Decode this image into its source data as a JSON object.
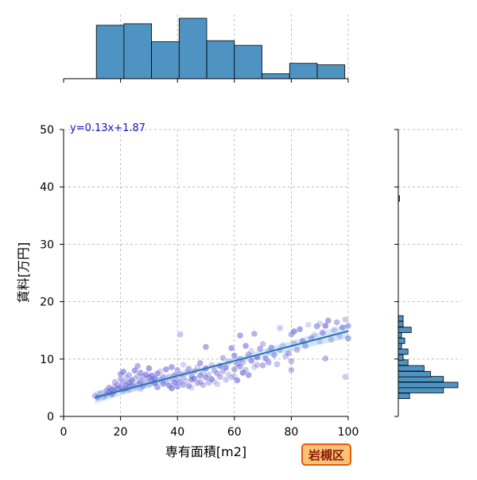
{
  "chart_data": {
    "type": "scatter",
    "xlabel": "専有面積[m2]",
    "ylabel": "賃料[万円]",
    "xlim": [
      0,
      100
    ],
    "ylim": [
      0,
      50
    ],
    "x_ticks": [
      0,
      20,
      40,
      60,
      80,
      100
    ],
    "y_ticks": [
      0,
      10,
      20,
      30,
      40,
      50
    ],
    "grid": true,
    "regression": {
      "label": "y=0.13x+1.87",
      "slope": 0.13,
      "intercept": 1.87,
      "x_range": [
        11,
        100
      ]
    },
    "badge": "岩槻区",
    "top_histogram": {
      "bin_width": 9.7,
      "bins": [
        {
          "x0": 11.5,
          "count": 20.5
        },
        {
          "x0": 21.2,
          "count": 21.1
        },
        {
          "x0": 30.9,
          "count": 14.2
        },
        {
          "x0": 40.6,
          "count": 23.2
        },
        {
          "x0": 50.3,
          "count": 14.6
        },
        {
          "x0": 60.0,
          "count": 12.8
        },
        {
          "x0": 69.7,
          "count": 1.9
        },
        {
          "x0": 79.4,
          "count": 5.9
        },
        {
          "x0": 89.1,
          "count": 5.3
        }
      ]
    },
    "right_histogram": {
      "bin_height": 0.96,
      "bins": [
        {
          "y0": 3.1,
          "count": 14
        },
        {
          "y0": 4.1,
          "count": 56
        },
        {
          "y0": 5.0,
          "count": 74
        },
        {
          "y0": 6.0,
          "count": 56
        },
        {
          "y0": 6.9,
          "count": 40
        },
        {
          "y0": 7.9,
          "count": 32
        },
        {
          "y0": 8.9,
          "count": 12
        },
        {
          "y0": 9.8,
          "count": 6
        },
        {
          "y0": 10.8,
          "count": 12
        },
        {
          "y0": 11.8,
          "count": 4
        },
        {
          "y0": 12.7,
          "count": 8
        },
        {
          "y0": 13.7,
          "count": 4
        },
        {
          "y0": 14.6,
          "count": 16
        },
        {
          "y0": 15.6,
          "count": 6
        },
        {
          "y0": 16.6,
          "count": 6
        },
        {
          "y0": 37.5,
          "count": 1
        }
      ]
    },
    "points": [
      [
        11,
        3.6
      ],
      [
        12,
        3.3
      ],
      [
        13,
        4.0
      ],
      [
        14,
        3.4
      ],
      [
        15,
        4.5
      ],
      [
        15,
        3.8
      ],
      [
        16,
        4.2
      ],
      [
        16,
        5.0
      ],
      [
        17,
        4.6
      ],
      [
        17,
        3.9
      ],
      [
        18,
        5.2
      ],
      [
        18,
        4.4
      ],
      [
        18,
        6.0
      ],
      [
        19,
        5.5
      ],
      [
        19,
        4.8
      ],
      [
        20,
        6.5
      ],
      [
        20,
        5.1
      ],
      [
        20,
        7.4
      ],
      [
        21,
        4.6
      ],
      [
        21,
        6.0
      ],
      [
        21,
        7.8
      ],
      [
        22,
        5.5
      ],
      [
        22,
        4.9
      ],
      [
        22,
        6.8
      ],
      [
        23,
        5.9
      ],
      [
        23,
        7.2
      ],
      [
        23,
        4.7
      ],
      [
        24,
        6.3
      ],
      [
        24,
        5.4
      ],
      [
        25,
        8.0
      ],
      [
        25,
        6.6
      ],
      [
        25,
        5.0
      ],
      [
        26,
        7.0
      ],
      [
        26,
        8.8
      ],
      [
        26,
        5.6
      ],
      [
        27,
        6.1
      ],
      [
        27,
        7.6
      ],
      [
        27,
        4.8
      ],
      [
        28,
        6.9
      ],
      [
        28,
        5.3
      ],
      [
        29,
        7.3
      ],
      [
        29,
        6.0
      ],
      [
        30,
        6.8
      ],
      [
        30,
        5.5
      ],
      [
        30,
        8.4
      ],
      [
        31,
        6.2
      ],
      [
        31,
        7.1
      ],
      [
        32,
        5.8
      ],
      [
        32,
        6.6
      ],
      [
        33,
        7.5
      ],
      [
        33,
        5.1
      ],
      [
        34,
        6.4
      ],
      [
        34,
        7.9
      ],
      [
        35,
        5.7
      ],
      [
        35,
        6.9
      ],
      [
        36,
        8.2
      ],
      [
        36,
        6.1
      ],
      [
        37,
        5.4
      ],
      [
        37,
        7.0
      ],
      [
        38,
        6.5
      ],
      [
        38,
        8.6
      ],
      [
        38,
        4.9
      ],
      [
        39,
        7.2
      ],
      [
        39,
        5.9
      ],
      [
        40,
        6.3
      ],
      [
        40,
        8.1
      ],
      [
        40,
        5.2
      ],
      [
        41,
        7.4
      ],
      [
        41,
        6.0
      ],
      [
        41,
        14.3
      ],
      [
        42,
        6.8
      ],
      [
        42,
        5.5
      ],
      [
        42,
        9.0
      ],
      [
        43,
        7.7
      ],
      [
        43,
        6.2
      ],
      [
        44,
        5.3
      ],
      [
        44,
        8.3
      ],
      [
        45,
        7.0
      ],
      [
        45,
        6.4
      ],
      [
        45,
        5.0
      ],
      [
        46,
        7.9
      ],
      [
        46,
        6.6
      ],
      [
        47,
        5.8
      ],
      [
        47,
        8.6
      ],
      [
        48,
        7.1
      ],
      [
        48,
        6.0
      ],
      [
        48,
        9.3
      ],
      [
        49,
        5.5
      ],
      [
        49,
        7.6
      ],
      [
        50,
        6.8
      ],
      [
        50,
        12.1
      ],
      [
        50,
        8.4
      ],
      [
        51,
        5.9
      ],
      [
        51,
        7.3
      ],
      [
        52,
        6.5
      ],
      [
        52,
        9.0
      ],
      [
        53,
        8.0
      ],
      [
        53,
        6.1
      ],
      [
        54,
        7.5
      ],
      [
        54,
        5.6
      ],
      [
        55,
        8.8
      ],
      [
        55,
        6.9
      ],
      [
        56,
        7.9
      ],
      [
        56,
        10.2
      ],
      [
        57,
        6.4
      ],
      [
        57,
        8.5
      ],
      [
        58,
        7.3
      ],
      [
        58,
        9.6
      ],
      [
        59,
        6.8
      ],
      [
        59,
        11.9
      ],
      [
        60,
        8.2
      ],
      [
        60,
        10.6
      ],
      [
        60,
        7.0
      ],
      [
        61,
        9.1
      ],
      [
        61,
        6.3
      ],
      [
        62,
        8.7
      ],
      [
        62,
        14.1
      ],
      [
        62,
        10.0
      ],
      [
        63,
        7.6
      ],
      [
        63,
        9.4
      ],
      [
        64,
        12.3
      ],
      [
        64,
        8.1
      ],
      [
        65,
        10.8
      ],
      [
        65,
        7.2
      ],
      [
        66,
        9.7
      ],
      [
        66,
        11.4
      ],
      [
        67,
        8.6
      ],
      [
        67,
        14.4
      ],
      [
        68,
        10.3
      ],
      [
        68,
        9.0
      ],
      [
        69,
        11.8
      ],
      [
        70,
        8.9
      ],
      [
        70,
        12.6
      ],
      [
        71,
        10.1
      ],
      [
        72,
        9.4
      ],
      [
        72,
        11.3
      ],
      [
        73,
        12.0
      ],
      [
        74,
        10.7
      ],
      [
        75,
        9.1
      ],
      [
        76,
        11.6
      ],
      [
        76,
        15.4
      ],
      [
        77,
        12.4
      ],
      [
        78,
        10.5
      ],
      [
        79,
        11.0
      ],
      [
        80,
        14.3
      ],
      [
        80,
        8.1
      ],
      [
        80,
        9.6
      ],
      [
        81,
        12.7
      ],
      [
        81,
        14.8
      ],
      [
        82,
        11.6
      ],
      [
        83,
        15.2
      ],
      [
        84,
        13.1
      ],
      [
        85,
        12.3
      ],
      [
        86,
        16.0
      ],
      [
        87,
        13.6
      ],
      [
        88,
        14.2
      ],
      [
        89,
        15.7
      ],
      [
        90,
        13.1
      ],
      [
        90,
        16.2
      ],
      [
        91,
        14.6
      ],
      [
        92,
        10.1
      ],
      [
        92,
        15.8
      ],
      [
        93,
        16.7
      ],
      [
        94,
        13.4
      ],
      [
        95,
        15.1
      ],
      [
        96,
        16.4
      ],
      [
        97,
        14.0
      ],
      [
        98,
        15.5
      ],
      [
        99,
        16.9
      ],
      [
        99,
        6.9
      ],
      [
        100,
        13.6
      ],
      [
        100,
        15.8
      ]
    ]
  }
}
